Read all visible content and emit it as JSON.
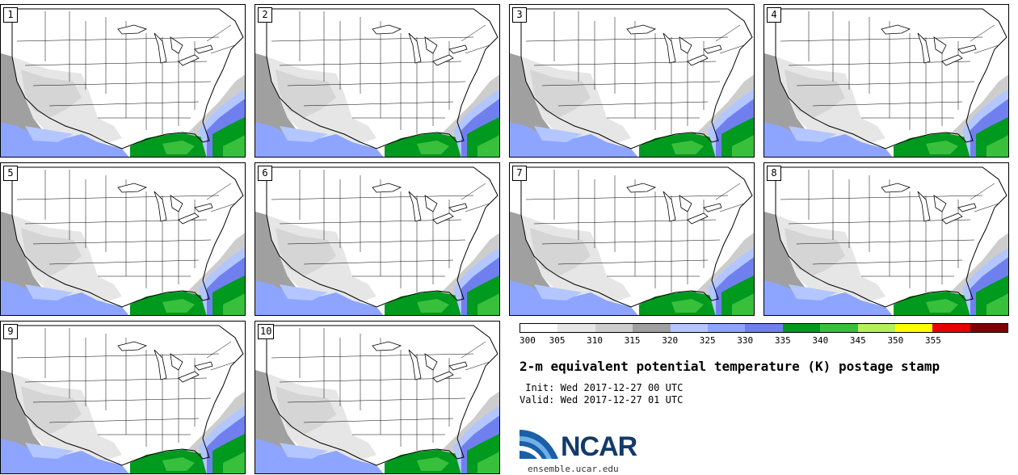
{
  "title": "2-m equivalent potential temperature (K) postage stamp",
  "init_label": " Init: Wed 2017-12-27 00 UTC",
  "valid_label": "Valid: Wed 2017-12-27 01 UTC",
  "members": [
    "1",
    "2",
    "3",
    "4",
    "5",
    "6",
    "7",
    "8",
    "9",
    "10"
  ],
  "colorbar": {
    "ticks": [
      "300",
      "305",
      "310",
      "315",
      "320",
      "325",
      "330",
      "335",
      "340",
      "345",
      "350",
      "355"
    ],
    "colors": [
      "#ffffff",
      "#e6e6e6",
      "#cdcdcd",
      "#a0a0a0",
      "#b3c6ff",
      "#8da5ff",
      "#6f80ee",
      "#009a1e",
      "#38c03c",
      "#b4f05a",
      "#ffff00",
      "#e60000",
      "#7f0000"
    ]
  },
  "logo": {
    "name": "NCAR",
    "url": "ensemble.ucar.edu"
  }
}
